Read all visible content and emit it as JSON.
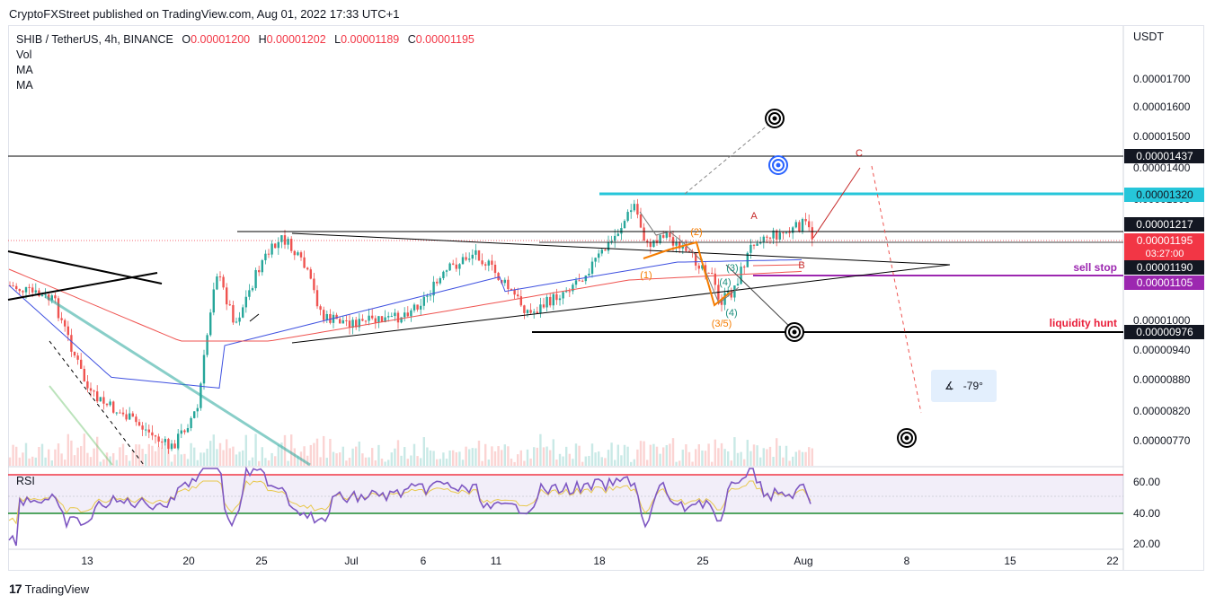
{
  "header": {
    "publisher_text": "CryptoFXStreet published on TradingView.com, Aug 01, 2022 17:33 UTC+1"
  },
  "legend": {
    "symbol": "SHIB / TetherUS, 4h, BINANCE",
    "open_label": "O",
    "open": "0.00001200",
    "high_label": "H",
    "high": "0.00001202",
    "low_label": "L",
    "low": "0.00001189",
    "close_label": "C",
    "close": "0.00001195",
    "indicators": [
      "Vol",
      "MA",
      "MA"
    ]
  },
  "rsi_pane": {
    "title": "RSI"
  },
  "currency": "USDT",
  "footer": {
    "logo_text": "TradingView"
  },
  "angle_tool": {
    "value": "-79°"
  },
  "colors": {
    "up": "#26a69a",
    "down": "#ef5350",
    "ma_blue": "#3f51e0",
    "ma_red": "#ef5350",
    "cyan_level": "#26c6da",
    "sell_stop": "#9c27b0",
    "liquidity": "#e91e3a",
    "rsi_line": "#7e57c2",
    "rsi_ma": "#e8c84d",
    "rsi_upper": "#f23645",
    "rsi_lower": "#1b8a2f"
  },
  "chart_data": {
    "type": "candlestick",
    "title": "SHIB / TetherUS, 4h, BINANCE",
    "ylabel": "USDT",
    "ylim": [
      7.4e-06,
      1.75e-05
    ],
    "y_ticks": [
      "0.00001700",
      "0.00001600",
      "0.00001500",
      "0.00001400",
      "0.00001300",
      "0.00001000",
      "0.00000940",
      "0.00000880",
      "0.00000820",
      "0.00000770"
    ],
    "x_ticks": [
      "13",
      "20",
      "25",
      "Jul",
      "6",
      "11",
      "18",
      "25",
      "Aug",
      "8",
      "15",
      "22"
    ],
    "price_labels": [
      {
        "value": "0.00001437",
        "style": "black"
      },
      {
        "value": "0.00001320",
        "style": "cyan"
      },
      {
        "value": "0.00001217",
        "style": "black"
      },
      {
        "value": "0.00001195",
        "style": "red",
        "countdown": "03:27:00"
      },
      {
        "value": "0.00001190",
        "style": "black"
      },
      {
        "value": "0.00001105",
        "style": "purple"
      },
      {
        "value": "0.00000976",
        "style": "black"
      }
    ],
    "annotations": {
      "sell_stop": "sell stop",
      "liquidity_hunt": "liquidity hunt",
      "wave_A": "A",
      "wave_B": "B",
      "wave_C": "C",
      "wave_1": "(1)",
      "wave_2": "(2)",
      "wave_35": "(3/5)",
      "wave_4": "(4)",
      "wave_3g": "(3)",
      "wave_4g": "(4)"
    },
    "rsi": {
      "upper_label": "60.00",
      "mid_label": "40.00",
      "low_label": "20.00",
      "upper": 70,
      "lower": 30
    }
  }
}
